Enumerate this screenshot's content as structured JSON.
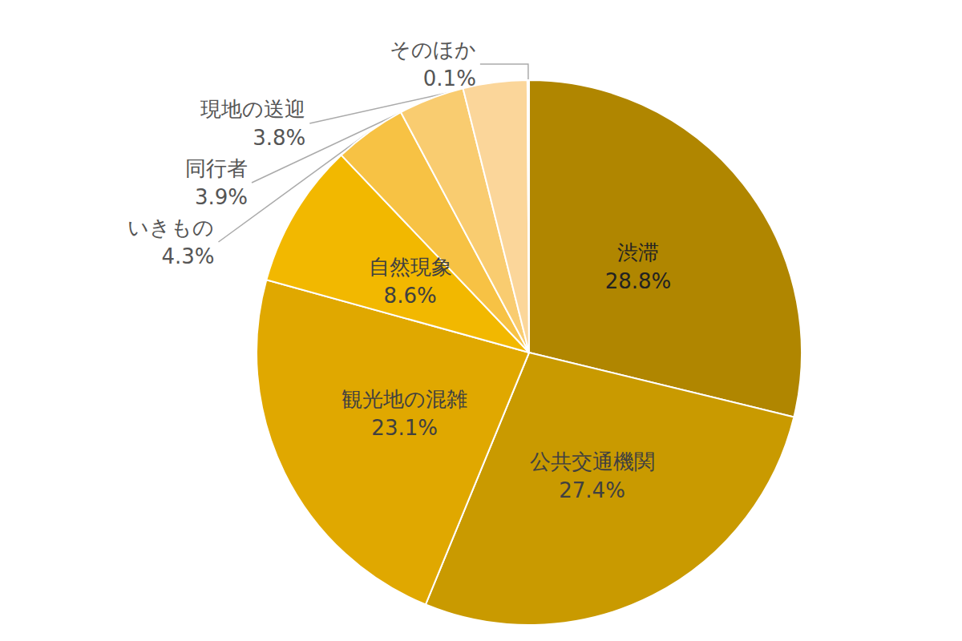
{
  "chart_data": {
    "type": "pie",
    "categories": [
      "渋滞",
      "公共交通機関",
      "観光地の混雑",
      "自然現象",
      "いきもの",
      "同行者",
      "現地の送迎",
      "そのほか"
    ],
    "values": [
      28.8,
      27.4,
      23.1,
      8.6,
      4.3,
      3.9,
      3.8,
      0.1
    ],
    "value_labels": [
      "28.8%",
      "27.4%",
      "23.1%",
      "8.6%",
      "4.3%",
      "3.9%",
      "3.8%",
      "0.1%"
    ],
    "colors": [
      "#b08600",
      "#c99a00",
      "#e0a800",
      "#f2b800",
      "#f7c244",
      "#f9cc70",
      "#fbd69a",
      "#fde4bd"
    ],
    "data_labels": true
  }
}
